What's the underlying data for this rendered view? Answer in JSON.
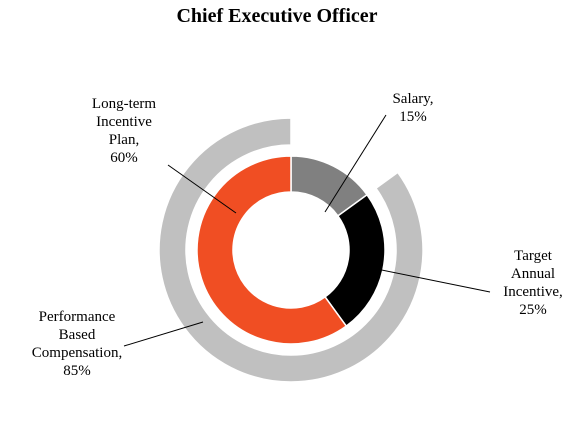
{
  "chart_data": {
    "type": "pie",
    "title": "Chief Executive Officer",
    "variant": "nested-donut",
    "start_angle": "12 o'clock, clockwise",
    "colors": {
      "salary": "#808080",
      "target_annual_incentive": "#000000",
      "long_term_incentive_plan": "#F04E23",
      "performance_based_compensation": "#C0C0C0",
      "remainder": "#FFFFFF"
    },
    "series": [
      {
        "ring": "inner",
        "slices": [
          {
            "key": "salary",
            "label": [
              "Salary,",
              "15%"
            ],
            "value": 15
          },
          {
            "key": "target_annual_incentive",
            "label": [
              "Target",
              "Annual",
              "Incentive,",
              "25%"
            ],
            "value": 25
          },
          {
            "key": "long_term_incentive_plan",
            "label": [
              "Long-term",
              "Incentive",
              "Plan,",
              "60%"
            ],
            "value": 60
          }
        ]
      },
      {
        "ring": "outer",
        "slices": [
          {
            "key": "remainder",
            "label": [],
            "value": 15
          },
          {
            "key": "performance_based_compensation",
            "label": [
              "Performance",
              "Based",
              "Compensation,",
              "85%"
            ],
            "value": 85
          }
        ]
      }
    ]
  }
}
